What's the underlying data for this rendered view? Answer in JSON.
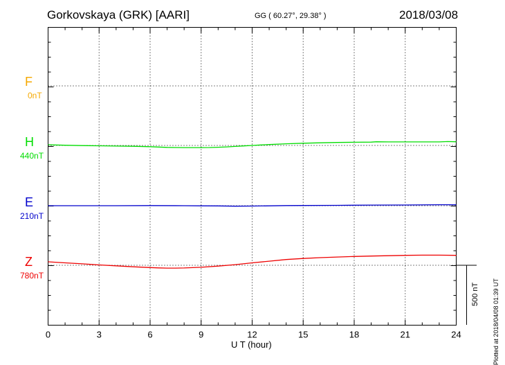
{
  "header": {
    "station": "Gorkovskaya (GRK)  [AARI]",
    "coords": "GG ( 60.27°,  29.38° )",
    "date": "2018/03/08"
  },
  "footer": {
    "xlabel": "U T (hour)",
    "plotted": "Plotted at 2018/04/08 01:39 UT"
  },
  "scale_bar": {
    "label": "500 nT",
    "value_nT": 500
  },
  "components": [
    {
      "name": "F",
      "baseline": "0nT",
      "color": "#f5a800"
    },
    {
      "name": "H",
      "baseline": "440nT",
      "color": "#00dd00"
    },
    {
      "name": "E",
      "baseline": "210nT",
      "color": "#0000cc"
    },
    {
      "name": "Z",
      "baseline": "780nT",
      "color": "#ee0000"
    }
  ],
  "chart_data": {
    "type": "line",
    "title": "Gorkovskaya (GRK)  [AARI]",
    "xlabel": "U T (hour)",
    "xlim": [
      0,
      24
    ],
    "x_ticks": [
      0,
      3,
      6,
      9,
      12,
      15,
      18,
      21,
      24
    ],
    "grid": true,
    "series": [
      {
        "name": "H",
        "color": "#00dd00",
        "x": [
          0,
          1,
          2,
          3,
          4,
          5,
          6,
          6.5,
          7,
          7.5,
          8,
          8.5,
          9,
          9.5,
          10,
          10.5,
          11,
          11.5,
          12,
          12.5,
          13,
          14,
          15,
          16,
          17,
          18,
          19,
          19.3,
          20,
          21,
          22,
          23,
          23.5,
          24
        ],
        "y": [
          0,
          -4,
          -7,
          -9,
          -11,
          -13,
          -16,
          -19,
          -22,
          -23,
          -24,
          -24,
          -24,
          -23,
          -21,
          -18,
          -14,
          -10,
          -6,
          -2,
          2,
          8,
          13,
          16,
          19,
          21,
          22,
          25,
          24,
          24,
          24,
          24,
          27,
          25
        ]
      },
      {
        "name": "E",
        "color": "#0000cc",
        "x": [
          0,
          2,
          4,
          6,
          8,
          9,
          10,
          11,
          12,
          13,
          14,
          15,
          17,
          19,
          21,
          23,
          24
        ],
        "y": [
          0,
          0,
          0,
          1,
          0,
          -1,
          -2,
          -4,
          -3,
          -1,
          1,
          2,
          3,
          5,
          6,
          8,
          8
        ]
      },
      {
        "name": "Z",
        "color": "#ee0000",
        "x": [
          0,
          1,
          2,
          3,
          4,
          5,
          6,
          6.5,
          7,
          7.5,
          8,
          9,
          10,
          11,
          12,
          13,
          14,
          15,
          16,
          17,
          18,
          19,
          20,
          21,
          22,
          23,
          24
        ],
        "y": [
          0,
          -9,
          -17,
          -26,
          -34,
          -42,
          -48,
          -51,
          -53,
          -53,
          -52,
          -46,
          -36,
          -24,
          -9,
          5,
          19,
          28,
          35,
          40,
          45,
          48,
          51,
          54,
          56,
          56,
          54
        ]
      }
    ]
  }
}
